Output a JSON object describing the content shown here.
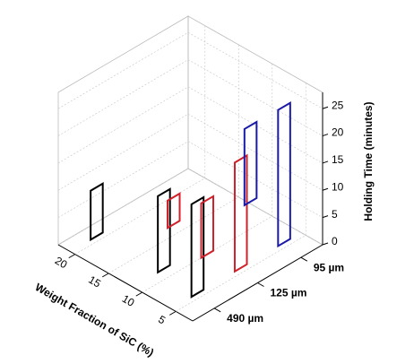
{
  "chart_data": {
    "type": "bar3d-range",
    "x_label": "Weight Fraction of SiC (%)",
    "z_label": "Holding Time (minutes)",
    "x": [
      5,
      10,
      15,
      20
    ],
    "xlim": [
      2.5,
      22.5
    ],
    "xticks": [
      5,
      10,
      15,
      20
    ],
    "ylim": [
      0,
      28
    ],
    "yticks": [
      0,
      5,
      10,
      15,
      20,
      25
    ],
    "grid": true,
    "series": [
      {
        "name": "490 µm",
        "color": "#000000",
        "values": [
          [
            1,
            18
          ],
          [
            2,
            16
          ],
          null,
          [
            1,
            10
          ]
        ]
      },
      {
        "name": "125 µm",
        "color": "#d0202a",
        "values": [
          [
            1,
            21
          ],
          [
            0,
            10
          ],
          [
            2,
            7
          ],
          null
        ]
      },
      {
        "name": "95 µm",
        "color": "#1a1aa8",
        "values": [
          [
            1,
            26
          ],
          [
            5,
            19
          ],
          null,
          null
        ]
      }
    ]
  }
}
